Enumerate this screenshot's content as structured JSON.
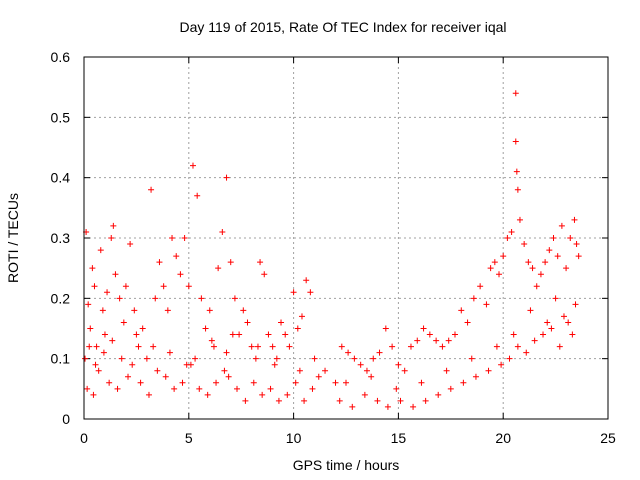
{
  "chart_data": {
    "type": "scatter",
    "title": "Day 119 of 2015, Rate Of TEC Index for receiver iqal",
    "xlabel": "GPS time / hours",
    "ylabel": "ROTI / TECUs",
    "xlim": [
      0,
      25
    ],
    "ylim": [
      0,
      0.6
    ],
    "xticks": [
      "0",
      "5",
      "10",
      "15",
      "20",
      "25"
    ],
    "yticks": [
      "0",
      "0.1",
      "0.2",
      "0.3",
      "0.4",
      "0.5",
      "0.6"
    ],
    "grid": true,
    "marker": "plus",
    "color": "#ff0000",
    "series": [
      {
        "x": [
          0.1,
          0.2,
          0.3,
          0.4,
          0.5,
          0.6,
          0.8,
          0.9,
          1.0,
          1.1,
          1.3,
          1.4,
          1.5,
          1.7,
          1.9,
          2.0,
          2.2,
          2.4,
          2.6,
          2.8,
          3.0,
          3.2,
          3.4,
          3.6,
          3.8,
          4.0,
          4.2,
          4.4,
          4.6,
          4.8,
          5.0,
          5.2,
          5.4,
          5.6,
          5.8,
          6.0,
          6.2,
          6.4,
          6.6,
          6.8,
          7.0,
          7.2,
          7.4,
          7.6,
          7.8,
          8.0,
          8.2,
          8.4,
          8.6,
          8.8,
          9.0,
          9.2,
          9.4,
          9.6,
          9.8,
          10.0,
          10.2,
          10.4,
          10.6,
          10.8,
          11.0,
          11.5,
          12.0,
          12.3,
          12.6,
          12.9,
          13.2,
          13.5,
          13.8,
          14.1,
          14.4,
          14.7,
          15.0,
          15.3,
          15.6,
          15.9,
          16.2,
          16.5,
          16.8,
          17.1,
          17.4,
          17.7,
          18.0,
          18.3,
          18.6,
          18.9,
          19.2,
          19.4,
          19.6,
          19.8,
          20.0,
          20.2,
          20.4,
          20.6,
          20.8,
          21.0,
          21.2,
          21.4,
          21.6,
          21.8,
          22.0,
          22.2,
          22.4,
          22.6,
          22.8,
          23.0,
          23.2,
          23.4,
          23.5,
          23.6,
          0.15,
          0.45,
          0.7,
          1.2,
          1.6,
          2.1,
          2.3,
          2.7,
          3.1,
          3.5,
          3.9,
          4.3,
          4.7,
          5.1,
          5.5,
          5.9,
          6.3,
          6.7,
          6.9,
          7.3,
          7.7,
          8.1,
          8.5,
          8.9,
          9.3,
          9.7,
          10.1,
          10.5,
          10.9,
          12.2,
          12.8,
          13.4,
          14.0,
          14.5,
          15.1,
          15.7,
          16.3,
          16.9,
          17.5,
          18.1,
          18.7,
          19.3,
          19.9,
          20.3,
          20.7,
          21.1,
          21.5,
          21.9,
          22.3,
          22.7,
          23.1,
          23.3,
          0.05,
          0.25,
          0.55,
          0.95,
          1.35,
          1.8,
          2.5,
          3.3,
          4.1,
          4.9,
          5.3,
          6.1,
          6.8,
          7.1,
          8.3,
          9.1,
          10.3,
          11.2,
          12.5,
          13.7,
          14.9,
          16.1,
          17.3,
          18.5,
          19.7,
          20.5,
          20.6,
          20.65,
          20.7,
          21.3,
          22.1,
          22.5,
          22.9,
          23.45
        ],
        "y": [
          0.31,
          0.19,
          0.15,
          0.25,
          0.22,
          0.12,
          0.28,
          0.18,
          0.14,
          0.21,
          0.3,
          0.32,
          0.24,
          0.2,
          0.16,
          0.22,
          0.29,
          0.18,
          0.12,
          0.15,
          0.1,
          0.38,
          0.2,
          0.26,
          0.22,
          0.18,
          0.3,
          0.27,
          0.24,
          0.3,
          0.22,
          0.42,
          0.37,
          0.2,
          0.15,
          0.18,
          0.12,
          0.25,
          0.31,
          0.4,
          0.26,
          0.2,
          0.14,
          0.18,
          0.16,
          0.12,
          0.1,
          0.26,
          0.24,
          0.14,
          0.12,
          0.1,
          0.16,
          0.14,
          0.12,
          0.21,
          0.15,
          0.17,
          0.23,
          0.21,
          0.1,
          0.08,
          0.06,
          0.12,
          0.11,
          0.1,
          0.09,
          0.08,
          0.1,
          0.11,
          0.15,
          0.12,
          0.09,
          0.08,
          0.12,
          0.13,
          0.15,
          0.14,
          0.13,
          0.12,
          0.13,
          0.14,
          0.18,
          0.16,
          0.2,
          0.22,
          0.19,
          0.25,
          0.26,
          0.24,
          0.27,
          0.3,
          0.31,
          0.46,
          0.33,
          0.29,
          0.26,
          0.25,
          0.22,
          0.24,
          0.26,
          0.28,
          0.3,
          0.27,
          0.32,
          0.25,
          0.3,
          0.33,
          0.29,
          0.27,
          0.05,
          0.04,
          0.08,
          0.06,
          0.05,
          0.07,
          0.09,
          0.06,
          0.04,
          0.08,
          0.07,
          0.05,
          0.06,
          0.09,
          0.05,
          0.04,
          0.06,
          0.08,
          0.07,
          0.05,
          0.03,
          0.06,
          0.04,
          0.05,
          0.03,
          0.04,
          0.06,
          0.03,
          0.05,
          0.03,
          0.02,
          0.04,
          0.03,
          0.02,
          0.03,
          0.02,
          0.03,
          0.04,
          0.05,
          0.06,
          0.07,
          0.08,
          0.09,
          0.1,
          0.12,
          0.11,
          0.13,
          0.14,
          0.15,
          0.12,
          0.16,
          0.14,
          0.1,
          0.12,
          0.09,
          0.11,
          0.13,
          0.1,
          0.14,
          0.12,
          0.11,
          0.09,
          0.1,
          0.13,
          0.11,
          0.14,
          0.12,
          0.09,
          0.08,
          0.07,
          0.06,
          0.07,
          0.05,
          0.06,
          0.08,
          0.1,
          0.12,
          0.14,
          0.54,
          0.41,
          0.38,
          0.18,
          0.16,
          0.2,
          0.17,
          0.19
        ]
      }
    ]
  }
}
